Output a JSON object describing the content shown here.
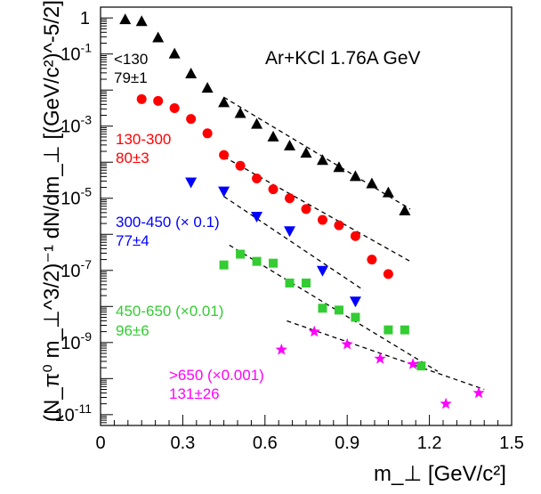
{
  "chart_data": {
    "type": "scatter",
    "title": "Ar+KCl  1.76A GeV",
    "xlabel": "m_⊥  [GeV/c²]",
    "ylabel": "(N_π⁰ m_⊥^3/2)⁻¹ dN/dm_⊥  [(GeV/c²)^-5/2]",
    "xlim": [
      0,
      1.5
    ],
    "ylim_log10": [
      -11.3,
      0.3
    ],
    "y_scale": "log",
    "x_ticks": [
      "0",
      "0.3",
      "0.6",
      "0.9",
      "1.2",
      "1.5"
    ],
    "y_tick_exponents": [
      -11,
      -9,
      -7,
      -5,
      -3,
      -1
    ],
    "y_tick_one": "1",
    "series": [
      {
        "name": "<130",
        "label": "<130",
        "label2": "79±1",
        "marker": "triangle-up",
        "color": "#000000",
        "x": [
          0.09,
          0.15,
          0.21,
          0.27,
          0.33,
          0.39,
          0.45,
          0.51,
          0.57,
          0.63,
          0.69,
          0.75,
          0.81,
          0.87,
          0.93,
          0.99,
          1.05,
          1.11
        ],
        "y_log10": [
          -0.05,
          -0.1,
          -0.55,
          -1.0,
          -1.55,
          -1.95,
          -2.35,
          -2.65,
          -2.95,
          -3.3,
          -3.55,
          -3.75,
          -3.95,
          -4.15,
          -4.4,
          -4.6,
          -4.85,
          -5.35
        ],
        "fit_x": [
          0.45,
          1.13
        ],
        "fit_y_log10": [
          -2.2,
          -5.3
        ]
      },
      {
        "name": "130-300",
        "label": "130-300",
        "label2": "80±3",
        "marker": "circle",
        "color": "#ff0000",
        "x": [
          0.15,
          0.21,
          0.27,
          0.33,
          0.39,
          0.45,
          0.51,
          0.57,
          0.63,
          0.69,
          0.75,
          0.81,
          0.87,
          0.93,
          0.99,
          1.05
        ],
        "y_log10": [
          -2.25,
          -2.3,
          -2.5,
          -2.8,
          -3.2,
          -3.8,
          -4.1,
          -4.45,
          -4.75,
          -5.0,
          -5.3,
          -5.6,
          -5.75,
          -6.05,
          -6.7,
          -7.1
        ],
        "fit_x": [
          0.45,
          1.13
        ],
        "fit_y_log10": [
          -3.85,
          -6.75
        ]
      },
      {
        "name": "300-450 (× 0.1)",
        "label": "300-450 (× 0.1)",
        "label2": "77±4",
        "marker": "triangle-down",
        "color": "#0000ff",
        "x": [
          0.33,
          0.45,
          0.57,
          0.69,
          0.81,
          0.93
        ],
        "y_log10": [
          -4.55,
          -4.8,
          -5.5,
          -5.9,
          -7.0,
          -7.85
        ],
        "fit_x": [
          0.45,
          0.96
        ],
        "fit_y_log10": [
          -4.95,
          -7.55
        ]
      },
      {
        "name": "450-650 (×0.01)",
        "label": "450-650 (×0.01)",
        "label2": "96±6",
        "marker": "square",
        "color": "#33cc33",
        "x": [
          0.45,
          0.51,
          0.57,
          0.63,
          0.69,
          0.75,
          0.81,
          0.87,
          0.93,
          1.05,
          1.11,
          1.17
        ],
        "y_log10": [
          -6.85,
          -6.55,
          -6.75,
          -6.8,
          -7.35,
          -7.35,
          -8.05,
          -8.1,
          -8.3,
          -8.65,
          -8.65,
          -9.65
        ],
        "fit_x": [
          0.47,
          1.23
        ],
        "fit_y_log10": [
          -6.3,
          -9.8
        ]
      },
      {
        "name": ">650 (×0.001)",
        "label": ">650 (×0.001)",
        "label2": "131±26",
        "marker": "star",
        "color": "#ff00ff",
        "x": [
          0.66,
          0.78,
          0.9,
          1.02,
          1.14,
          1.26,
          1.38
        ],
        "y_log10": [
          -9.2,
          -8.7,
          -9.05,
          -9.45,
          -9.6,
          -10.7,
          -10.4
        ],
        "fit_x": [
          0.68,
          1.4
        ],
        "fit_y_log10": [
          -8.4,
          -10.3
        ]
      }
    ]
  }
}
